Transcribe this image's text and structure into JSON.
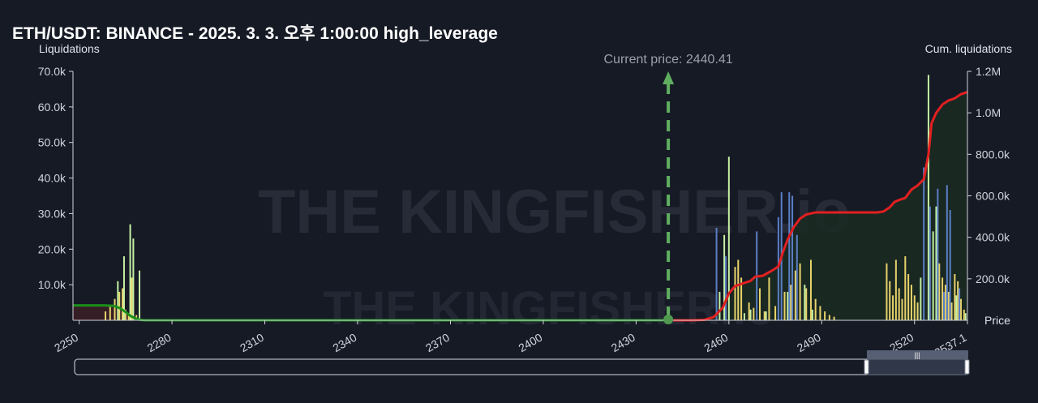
{
  "chart_data": {
    "type": "bar",
    "title": "ETH/USDT: BINANCE - 2025. 3. 3. 오후 1:00:00 high_leverage",
    "ylabel_left": "Liquidations",
    "ylabel_right": "Cum. liquidations",
    "xlabel": "Price",
    "watermark": "THE KINGFISHER.io",
    "current_price_label": "Current price: 2440.41",
    "current_price": 2440.41,
    "xlim": [
      2248,
      2537.1
    ],
    "ylim_left": [
      0,
      70000
    ],
    "ylim_right": [
      0,
      1200000
    ],
    "x_ticks": [
      "2250",
      "2280",
      "2310",
      "2340",
      "2370",
      "2400",
      "2430",
      "2460",
      "2490",
      "2520",
      "2537.1"
    ],
    "y_ticks_left": [
      "10.0k",
      "20.0k",
      "30.0k",
      "40.0k",
      "50.0k",
      "60.0k",
      "70.0k"
    ],
    "y_ticks_right": [
      "200.0k",
      "400.0k",
      "600.0k",
      "800.0k",
      "1.0M",
      "1.2M"
    ],
    "grid": false,
    "series": [
      {
        "color": "#e8d36a",
        "bars": [
          [
            2258.5,
            2500
          ],
          [
            2260.0,
            4000
          ],
          [
            2261.5,
            6000
          ],
          [
            2263.0,
            8000
          ],
          [
            2264.0,
            9000
          ],
          [
            2265.0,
            3000
          ],
          [
            2266.0,
            2000
          ],
          [
            2267.0,
            12000
          ],
          [
            2268.5,
            1500
          ],
          [
            2462.0,
            15000
          ],
          [
            2463.0,
            17000
          ],
          [
            2464.0,
            12000
          ],
          [
            2466.5,
            5000
          ],
          [
            2468.0,
            3500
          ],
          [
            2470.0,
            9000
          ],
          [
            2471.5,
            2500
          ],
          [
            2473.0,
            12000
          ],
          [
            2475.0,
            4000
          ],
          [
            2478.0,
            8000
          ],
          [
            2480.0,
            10000
          ],
          [
            2481.5,
            14000
          ],
          [
            2483.0,
            16000
          ],
          [
            2485.0,
            9000
          ],
          [
            2486.5,
            17000
          ],
          [
            2488.0,
            6000
          ],
          [
            2489.5,
            4000
          ],
          [
            2491.0,
            2500
          ],
          [
            2492.5,
            1500
          ],
          [
            2494.0,
            1000
          ],
          [
            2511.0,
            16000
          ],
          [
            2512.0,
            11000
          ],
          [
            2513.0,
            7000
          ],
          [
            2514.0,
            17000
          ],
          [
            2515.0,
            9000
          ],
          [
            2516.0,
            6000
          ],
          [
            2517.0,
            18000
          ],
          [
            2518.0,
            13000
          ],
          [
            2519.0,
            10000
          ],
          [
            2520.0,
            7000
          ],
          [
            2521.0,
            5000
          ],
          [
            2528.0,
            16000
          ],
          [
            2529.0,
            12000
          ],
          [
            2530.0,
            10000
          ],
          [
            2531.0,
            8000
          ],
          [
            2532.0,
            5000
          ],
          [
            2533.0,
            13000
          ],
          [
            2534.0,
            11000
          ],
          [
            2535.0,
            6000
          ],
          [
            2536.0,
            3000
          ]
        ]
      },
      {
        "color": "#c5f0a4",
        "bars": [
          [
            2262.5,
            11000
          ],
          [
            2264.5,
            18000
          ],
          [
            2266.5,
            27000
          ],
          [
            2267.5,
            23000
          ],
          [
            2269.5,
            14000
          ],
          [
            2457.0,
            8000
          ],
          [
            2458.5,
            24000
          ],
          [
            2460.0,
            46000
          ],
          [
            2465.0,
            2000
          ],
          [
            2467.0,
            3000
          ],
          [
            2472.0,
            2500
          ],
          [
            2479.0,
            8000
          ],
          [
            2484.5,
            10000
          ],
          [
            2487.0,
            3000
          ],
          [
            2522.0,
            12000
          ],
          [
            2524.5,
            69000
          ],
          [
            2526.0,
            25000
          ],
          [
            2527.0,
            32000
          ],
          [
            2533.5,
            7000
          ],
          [
            2536.5,
            2000
          ]
        ]
      },
      {
        "color": "#5b7fc7",
        "bars": [
          [
            2456.0,
            26000
          ],
          [
            2459.0,
            18000
          ],
          [
            2469.0,
            25000
          ],
          [
            2476.0,
            29000
          ],
          [
            2477.0,
            36000
          ],
          [
            2479.5,
            36000
          ],
          [
            2480.5,
            35000
          ],
          [
            2482.0,
            24000
          ],
          [
            2523.0,
            43000
          ],
          [
            2525.0,
            32000
          ],
          [
            2527.5,
            37000
          ],
          [
            2529.5,
            8000
          ],
          [
            2530.5,
            38000
          ],
          [
            2531.5,
            31000
          ],
          [
            2534.5,
            9000
          ]
        ]
      }
    ],
    "cum_short": {
      "color": "#e22020",
      "points": [
        [
          2442,
          0
        ],
        [
          2448,
          0
        ],
        [
          2452,
          2000
        ],
        [
          2455,
          15000
        ],
        [
          2458,
          60000
        ],
        [
          2460,
          130000
        ],
        [
          2462,
          165000
        ],
        [
          2465,
          180000
        ],
        [
          2467,
          190000
        ],
        [
          2468.5,
          210000
        ],
        [
          2471,
          215000
        ],
        [
          2474,
          240000
        ],
        [
          2476,
          260000
        ],
        [
          2477.5,
          330000
        ],
        [
          2479,
          390000
        ],
        [
          2481,
          450000
        ],
        [
          2483,
          490000
        ],
        [
          2485,
          510000
        ],
        [
          2488,
          520000
        ],
        [
          2492,
          520000
        ],
        [
          2500,
          520000
        ],
        [
          2508,
          520000
        ],
        [
          2510,
          525000
        ],
        [
          2512,
          545000
        ],
        [
          2513.5,
          570000
        ],
        [
          2515,
          580000
        ],
        [
          2517,
          590000
        ],
        [
          2519,
          630000
        ],
        [
          2521,
          650000
        ],
        [
          2523,
          680000
        ],
        [
          2524.5,
          800000
        ],
        [
          2525.5,
          950000
        ],
        [
          2527,
          1000000
        ],
        [
          2529,
          1040000
        ],
        [
          2531,
          1060000
        ],
        [
          2533,
          1070000
        ],
        [
          2535,
          1090000
        ],
        [
          2537.1,
          1100000
        ]
      ]
    },
    "cum_long": {
      "color": "#1a8f1a",
      "points": [
        [
          2248,
          72000
        ],
        [
          2258,
          72000
        ],
        [
          2261,
          70000
        ],
        [
          2263,
          60000
        ],
        [
          2265,
          40000
        ],
        [
          2266.5,
          22000
        ],
        [
          2268,
          10000
        ],
        [
          2269.5,
          3000
        ],
        [
          2271,
          0
        ],
        [
          2440.41,
          0
        ]
      ]
    }
  }
}
